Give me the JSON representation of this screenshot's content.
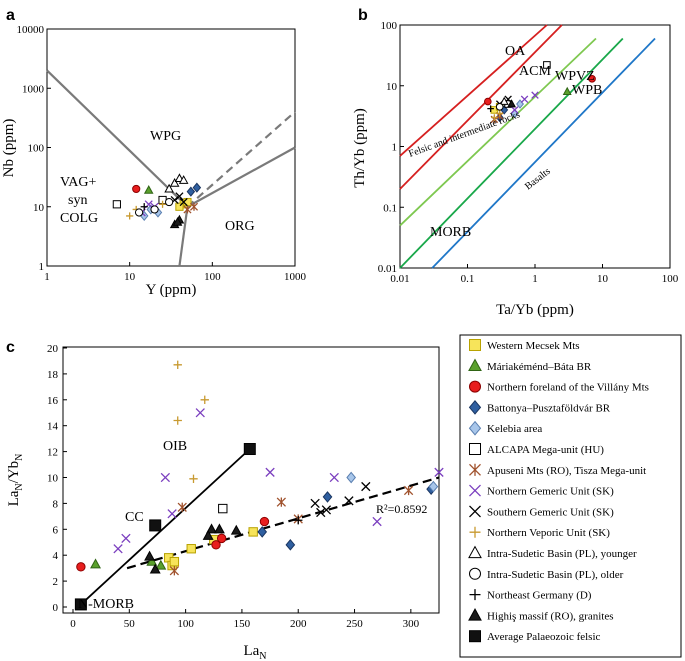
{
  "chart_data": [
    {
      "id": "a",
      "type": "scatter",
      "panel_label": "a",
      "xscale": "log",
      "yscale": "log",
      "xlim": [
        1,
        1000
      ],
      "ylim": [
        1,
        10000
      ],
      "xticks": [
        "1",
        "10",
        "100",
        "1000"
      ],
      "yticks": [
        "1",
        "10",
        "100",
        "1000",
        "10000"
      ],
      "xlabel": "Y (ppm)",
      "ylabel": "Nb (ppm)",
      "field_labels": [
        "WPG",
        "VAG+",
        "syn",
        "COLG",
        "ORG"
      ],
      "boundaries": [
        {
          "style": "solid",
          "points": [
            [
              1,
              2000
            ],
            [
              50,
              10
            ]
          ]
        },
        {
          "style": "solid",
          "points": [
            [
              50,
              10
            ],
            [
              1000,
              100
            ]
          ]
        },
        {
          "style": "dashed",
          "points": [
            [
              50,
              10
            ],
            [
              1000,
              400
            ]
          ]
        },
        {
          "style": "solid",
          "points": [
            [
              50,
              10
            ],
            [
              40,
              1
            ]
          ]
        }
      ],
      "points": [
        {
          "g": 0,
          "x": 45,
          "y": 11
        },
        {
          "g": 0,
          "x": 50,
          "y": 12
        },
        {
          "g": 0,
          "x": 40,
          "y": 10
        },
        {
          "g": 1,
          "x": 17,
          "y": 19
        },
        {
          "g": 2,
          "x": 12,
          "y": 20
        },
        {
          "g": 3,
          "x": 65,
          "y": 21
        },
        {
          "g": 3,
          "x": 55,
          "y": 18
        },
        {
          "g": 4,
          "x": 15,
          "y": 7
        },
        {
          "g": 4,
          "x": 18,
          "y": 9
        },
        {
          "g": 4,
          "x": 22,
          "y": 8
        },
        {
          "g": 5,
          "x": 7,
          "y": 11
        },
        {
          "g": 5,
          "x": 25,
          "y": 13
        },
        {
          "g": 6,
          "x": 60,
          "y": 10
        },
        {
          "g": 6,
          "x": 50,
          "y": 9
        },
        {
          "g": 7,
          "x": 14,
          "y": 8
        },
        {
          "g": 7,
          "x": 20,
          "y": 10
        },
        {
          "g": 7,
          "x": 17,
          "y": 11
        },
        {
          "g": 8,
          "x": 35,
          "y": 13
        },
        {
          "g": 8,
          "x": 40,
          "y": 15
        },
        {
          "g": 8,
          "x": 45,
          "y": 12
        },
        {
          "g": 9,
          "x": 10,
          "y": 7
        },
        {
          "g": 9,
          "x": 12,
          "y": 9
        },
        {
          "g": 9,
          "x": 25,
          "y": 11
        },
        {
          "g": 10,
          "x": 35,
          "y": 25
        },
        {
          "g": 10,
          "x": 40,
          "y": 30
        },
        {
          "g": 10,
          "x": 30,
          "y": 20
        },
        {
          "g": 10,
          "x": 45,
          "y": 28
        },
        {
          "g": 11,
          "x": 13,
          "y": 8
        },
        {
          "g": 11,
          "x": 20,
          "y": 9
        },
        {
          "g": 11,
          "x": 30,
          "y": 12
        },
        {
          "g": 12,
          "x": 15,
          "y": 10
        },
        {
          "g": 13,
          "x": 35,
          "y": 5
        },
        {
          "g": 13,
          "x": 40,
          "y": 6
        },
        {
          "g": 13,
          "x": 38,
          "y": 5.5
        }
      ]
    },
    {
      "id": "b",
      "type": "scatter",
      "panel_label": "b",
      "xscale": "log",
      "yscale": "log",
      "xlim": [
        0.01,
        100
      ],
      "ylim": [
        0.01,
        100
      ],
      "xticks": [
        "0.01",
        "0.1",
        "1",
        "10",
        "100"
      ],
      "yticks": [
        "0.01",
        "0.1",
        "1",
        "10",
        "100"
      ],
      "xlabel": "Ta/Yb (ppm)",
      "ylabel": "Th/Yb (ppm)",
      "field_labels": [
        "OA",
        "ACM",
        "WPVZ",
        "WPB",
        "MORB",
        "Felsic and intermediate rocks",
        "Basalts"
      ],
      "trend_lines": [
        {
          "color": "#d62020",
          "points": [
            [
              0.01,
              0.7
            ],
            [
              1.5,
              100
            ]
          ]
        },
        {
          "color": "#d62020",
          "points": [
            [
              0.01,
              0.2
            ],
            [
              2.5,
              100
            ]
          ]
        },
        {
          "color": "#7ec850",
          "points": [
            [
              0.01,
              0.05
            ],
            [
              8,
              60
            ]
          ]
        },
        {
          "color": "#19a84a",
          "points": [
            [
              0.01,
              0.01
            ],
            [
              20,
              60
            ]
          ]
        },
        {
          "color": "#1f77c8",
          "points": [
            [
              0.03,
              0.01
            ],
            [
              60,
              60
            ]
          ]
        }
      ],
      "points": [
        {
          "g": 0,
          "x": 0.25,
          "y": 4
        },
        {
          "g": 0,
          "x": 0.3,
          "y": 4.5
        },
        {
          "g": 1,
          "x": 3,
          "y": 8
        },
        {
          "g": 2,
          "x": 0.2,
          "y": 5.5
        },
        {
          "g": 2,
          "x": 7,
          "y": 13
        },
        {
          "g": 3,
          "x": 0.3,
          "y": 3
        },
        {
          "g": 3,
          "x": 0.35,
          "y": 4
        },
        {
          "g": 4,
          "x": 0.5,
          "y": 3.5
        },
        {
          "g": 4,
          "x": 0.6,
          "y": 5
        },
        {
          "g": 5,
          "x": 1.5,
          "y": 22
        },
        {
          "g": 5,
          "x": 0.4,
          "y": 5
        },
        {
          "g": 6,
          "x": 0.25,
          "y": 2.8
        },
        {
          "g": 6,
          "x": 0.3,
          "y": 3.2
        },
        {
          "g": 7,
          "x": 0.5,
          "y": 4
        },
        {
          "g": 7,
          "x": 0.7,
          "y": 6
        },
        {
          "g": 7,
          "x": 1,
          "y": 7
        },
        {
          "g": 8,
          "x": 0.3,
          "y": 5
        },
        {
          "g": 8,
          "x": 0.4,
          "y": 6
        },
        {
          "g": 9,
          "x": 0.25,
          "y": 3
        },
        {
          "g": 9,
          "x": 0.3,
          "y": 3.5
        },
        {
          "g": 10,
          "x": 0.35,
          "y": 5.5
        },
        {
          "g": 11,
          "x": 0.3,
          "y": 4.5
        },
        {
          "g": 12,
          "x": 0.22,
          "y": 4.2
        },
        {
          "g": 13,
          "x": 0.45,
          "y": 5
        }
      ]
    },
    {
      "id": "c",
      "type": "scatter",
      "panel_label": "c",
      "xlim": [
        0,
        325
      ],
      "ylim": [
        0,
        20
      ],
      "xticks": [
        "0",
        "50",
        "100",
        "150",
        "200",
        "250",
        "300"
      ],
      "yticks": [
        "0",
        "2",
        "4",
        "6",
        "8",
        "10",
        "12",
        "14",
        "16",
        "18",
        "20"
      ],
      "xlabel": "La",
      "xlabel_sub": "N",
      "ylabel": "La",
      "ylabel_sub": "N",
      "ylabel_mid": "/Yb",
      "ylabel_sub2": "N",
      "annotations": [
        "OIB",
        "CC",
        "N-MORB",
        "R²=0.8592"
      ],
      "reference_line": {
        "points": [
          [
            7,
            0.2
          ],
          [
            157,
            12.2
          ]
        ]
      },
      "regression_line": {
        "points": [
          [
            48,
            3
          ],
          [
            325,
            10
          ]
        ]
      },
      "points": [
        {
          "g": 0,
          "x": 85,
          "y": 3.8
        },
        {
          "g": 0,
          "x": 88,
          "y": 3.2
        },
        {
          "g": 0,
          "x": 90,
          "y": 3.5
        },
        {
          "g": 0,
          "x": 105,
          "y": 4.5
        },
        {
          "g": 0,
          "x": 125,
          "y": 5.2
        },
        {
          "g": 0,
          "x": 160,
          "y": 5.8
        },
        {
          "g": 1,
          "x": 20,
          "y": 3.3
        },
        {
          "g": 1,
          "x": 70,
          "y": 3.5
        },
        {
          "g": 1,
          "x": 78,
          "y": 3.2
        },
        {
          "g": 2,
          "x": 7,
          "y": 3.1
        },
        {
          "g": 2,
          "x": 127,
          "y": 4.8
        },
        {
          "g": 2,
          "x": 132,
          "y": 5.3
        },
        {
          "g": 2,
          "x": 170,
          "y": 6.6
        },
        {
          "g": 3,
          "x": 168,
          "y": 5.8
        },
        {
          "g": 3,
          "x": 193,
          "y": 4.8
        },
        {
          "g": 3,
          "x": 226,
          "y": 8.5
        },
        {
          "g": 3,
          "x": 318,
          "y": 9.1
        },
        {
          "g": 4,
          "x": 247,
          "y": 10
        },
        {
          "g": 4,
          "x": 320,
          "y": 9.3
        },
        {
          "g": 5,
          "x": 133,
          "y": 7.6
        },
        {
          "g": 6,
          "x": 90,
          "y": 2.8
        },
        {
          "g": 6,
          "x": 185,
          "y": 8.1
        },
        {
          "g": 6,
          "x": 200,
          "y": 6.8
        },
        {
          "g": 6,
          "x": 298,
          "y": 9
        },
        {
          "g": 6,
          "x": 97,
          "y": 7.7
        },
        {
          "g": 7,
          "x": 40,
          "y": 4.5
        },
        {
          "g": 7,
          "x": 47,
          "y": 5.3
        },
        {
          "g": 7,
          "x": 82,
          "y": 10
        },
        {
          "g": 7,
          "x": 88,
          "y": 7.2
        },
        {
          "g": 7,
          "x": 113,
          "y": 15
        },
        {
          "g": 7,
          "x": 175,
          "y": 10.4
        },
        {
          "g": 7,
          "x": 232,
          "y": 10
        },
        {
          "g": 7,
          "x": 270,
          "y": 6.6
        },
        {
          "g": 7,
          "x": 325,
          "y": 10.4
        },
        {
          "g": 8,
          "x": 215,
          "y": 8
        },
        {
          "g": 8,
          "x": 225,
          "y": 7.5
        },
        {
          "g": 8,
          "x": 245,
          "y": 8.2
        },
        {
          "g": 8,
          "x": 260,
          "y": 9.3
        },
        {
          "g": 8,
          "x": 220,
          "y": 7.3
        },
        {
          "g": 9,
          "x": 93,
          "y": 18.7
        },
        {
          "g": 9,
          "x": 117,
          "y": 16
        },
        {
          "g": 9,
          "x": 93,
          "y": 14.4
        },
        {
          "g": 9,
          "x": 107,
          "y": 9.9
        },
        {
          "g": 12,
          "x": 200,
          "y": 6.7
        },
        {
          "g": 13,
          "x": 68,
          "y": 3.9
        },
        {
          "g": 13,
          "x": 73,
          "y": 2.9
        },
        {
          "g": 13,
          "x": 123,
          "y": 6
        },
        {
          "g": 13,
          "x": 130,
          "y": 6
        },
        {
          "g": 13,
          "x": 145,
          "y": 5.9
        },
        {
          "g": 13,
          "x": 120,
          "y": 5.5
        },
        {
          "g": 14,
          "x": 7,
          "y": 0.2,
          "label": "N-MORB"
        },
        {
          "g": 14,
          "x": 73,
          "y": 6.3,
          "label": "CC"
        },
        {
          "g": 14,
          "x": 157,
          "y": 12.2,
          "label": "OIB"
        }
      ]
    }
  ],
  "legend": [
    {
      "label": "Western Mecsek Mts",
      "marker": "square",
      "fill": "#f7e45a",
      "stroke": "#b8a200"
    },
    {
      "label": "Máriakéménd–Báta BR",
      "marker": "triangle",
      "fill": "#5aa02c",
      "stroke": "#2f6414"
    },
    {
      "label": "Northern foreland of the Villány Mts",
      "marker": "circle",
      "fill": "#e81e1e",
      "stroke": "#8c0000"
    },
    {
      "label": "Battonya–Pusztaföldvár BR",
      "marker": "diamond",
      "fill": "#2f5fa0",
      "stroke": "#1a3560"
    },
    {
      "label": "Kelebia area",
      "marker": "diamond",
      "fill": "#a8c6ea",
      "stroke": "#5a7fb0"
    },
    {
      "label": "ALCAPA Mega-unit (HU)",
      "marker": "square",
      "fill": "#ffffff",
      "stroke": "#000000"
    },
    {
      "label": "Apuseni Mts (RO), Tisza Mega-unit",
      "marker": "star",
      "fill": "none",
      "stroke": "#a0522d"
    },
    {
      "label": "Northern Gemeric Unit (SK)",
      "marker": "x",
      "fill": "none",
      "stroke": "#7b3fbf"
    },
    {
      "label": "Southern Gemeric Unit (SK)",
      "marker": "x",
      "fill": "none",
      "stroke": "#000000"
    },
    {
      "label": "Northern Veporic Unit (SK)",
      "marker": "plus",
      "fill": "none",
      "stroke": "#c89a30"
    },
    {
      "label": "Intra-Sudetic Basin (PL), younger",
      "marker": "triangle",
      "fill": "#ffffff",
      "stroke": "#000000"
    },
    {
      "label": "Intra-Sudetic Basin (PL), older",
      "marker": "circle",
      "fill": "#ffffff",
      "stroke": "#000000"
    },
    {
      "label": "Northeast Germany (D)",
      "marker": "plus",
      "fill": "none",
      "stroke": "#000000"
    },
    {
      "label": "Highiş massif (RO), granites",
      "marker": "triangle",
      "fill": "#1a1a1a",
      "stroke": "#000000"
    },
    {
      "label": "Average Palaeozoic felsic",
      "marker": "square",
      "fill": "#111111",
      "stroke": "#000000"
    }
  ]
}
